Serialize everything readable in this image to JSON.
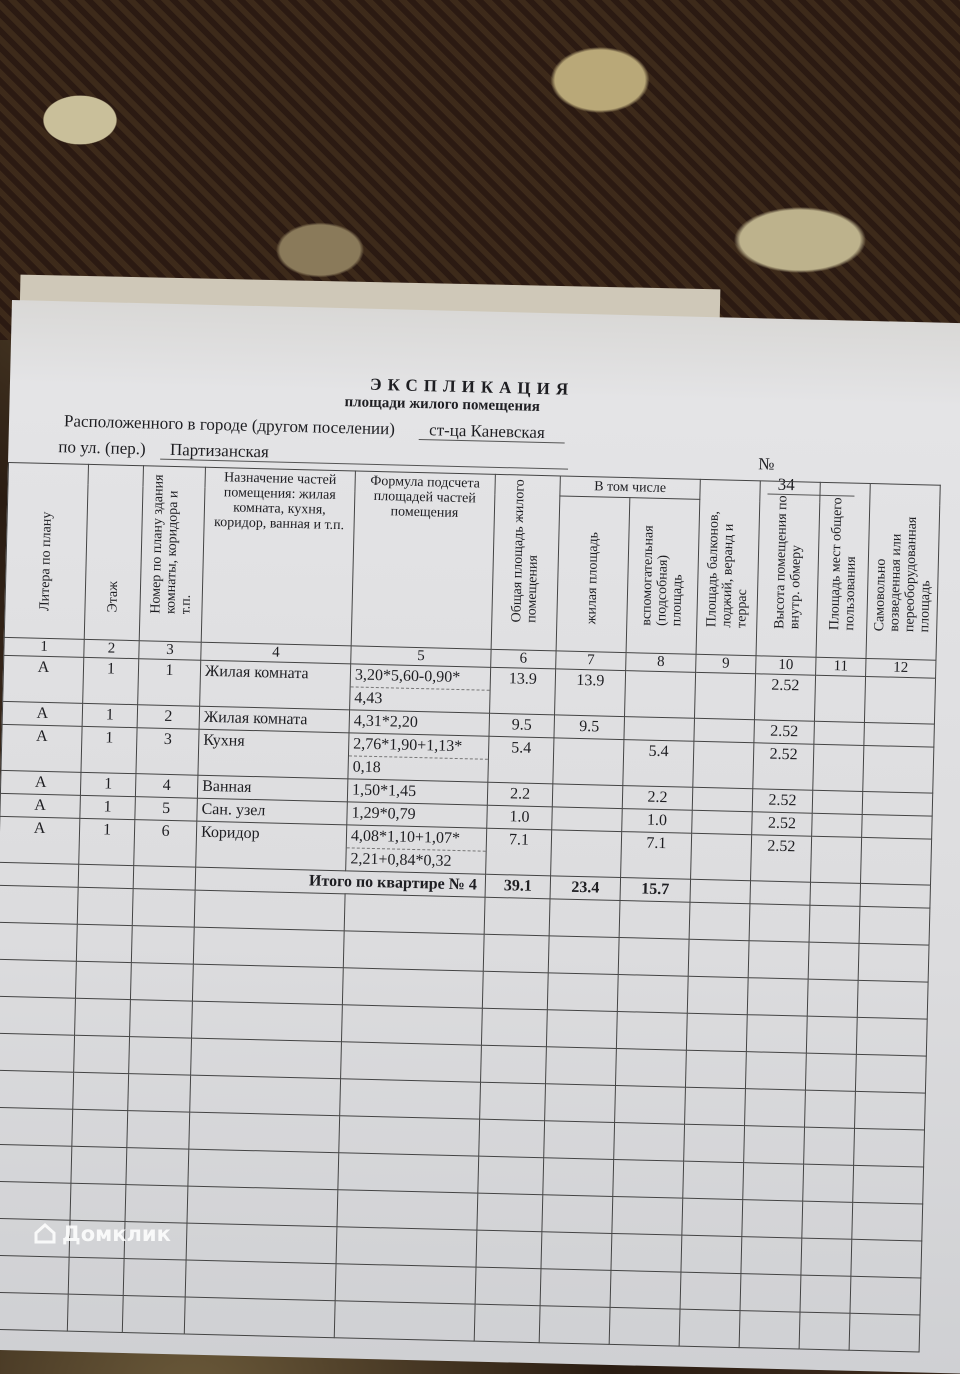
{
  "document": {
    "title": "ЭКСПЛИКАЦИЯ",
    "subtitle": "площади жилого помещения",
    "location_label": "Расположенного в городе (другом поселении)",
    "location_value": "ст-ца Каневская",
    "street_label": "по ул. (пер.)",
    "street_value": "Партизанская",
    "number_label": "№",
    "number_value": "34"
  },
  "table": {
    "headers": [
      "Литера по плану",
      "Этаж",
      "Номер по плану здания комнаты, коридора и т.п.",
      "Назначение частей помещения: жилая комната, кухня, коридор, ванная и т.п.",
      "Формула подсчета площадей частей помещения",
      "Общая площадь жилого помещения",
      "жилая площадь",
      "вспомогательная (подсобная) площадь",
      "Площадь балконов, лоджий, веранд и террас",
      "Высота помещения по внутр. обмеру",
      "Площадь мест общего пользования",
      "Самовольно возведенная или переоборудованная площадь"
    ],
    "group_header": "В том числе",
    "column_numbers": [
      "1",
      "2",
      "3",
      "4",
      "5",
      "6",
      "7",
      "8",
      "9",
      "10",
      "11",
      "12"
    ],
    "rows": [
      {
        "litera": "А",
        "floor": "1",
        "num": "1",
        "name": "Жилая комната",
        "formula": [
          "3,20*5,60-0,90*",
          "4,43"
        ],
        "total": "13.9",
        "living": "13.9",
        "aux": "",
        "balcony": "",
        "height": "2.52"
      },
      {
        "litera": "А",
        "floor": "1",
        "num": "2",
        "name": "Жилая комната",
        "formula": [
          "4,31*2,20"
        ],
        "total": "9.5",
        "living": "9.5",
        "aux": "",
        "balcony": "",
        "height": "2.52"
      },
      {
        "litera": "А",
        "floor": "1",
        "num": "3",
        "name": "Кухня",
        "formula": [
          "2,76*1,90+1,13*",
          "0,18"
        ],
        "total": "5.4",
        "living": "",
        "aux": "5.4",
        "balcony": "",
        "height": "2.52"
      },
      {
        "litera": "А",
        "floor": "1",
        "num": "4",
        "name": "Ванная",
        "formula": [
          "1,50*1,45"
        ],
        "total": "2.2",
        "living": "",
        "aux": "2.2",
        "balcony": "",
        "height": "2.52"
      },
      {
        "litera": "А",
        "floor": "1",
        "num": "5",
        "name": "Сан. узел",
        "formula": [
          "1,29*0,79"
        ],
        "total": "1.0",
        "living": "",
        "aux": "1.0",
        "balcony": "",
        "height": "2.52"
      },
      {
        "litera": "А",
        "floor": "1",
        "num": "6",
        "name": "Коридор",
        "formula": [
          "4,08*1,10+1,07*",
          "2,21+0,84*0,32"
        ],
        "total": "7.1",
        "living": "",
        "aux": "7.1",
        "balcony": "",
        "height": "2.52"
      }
    ],
    "total": {
      "label": "Итого по квартире № 4",
      "total": "39.1",
      "living": "23.4",
      "aux": "15.7"
    }
  },
  "watermark": "Домклик"
}
